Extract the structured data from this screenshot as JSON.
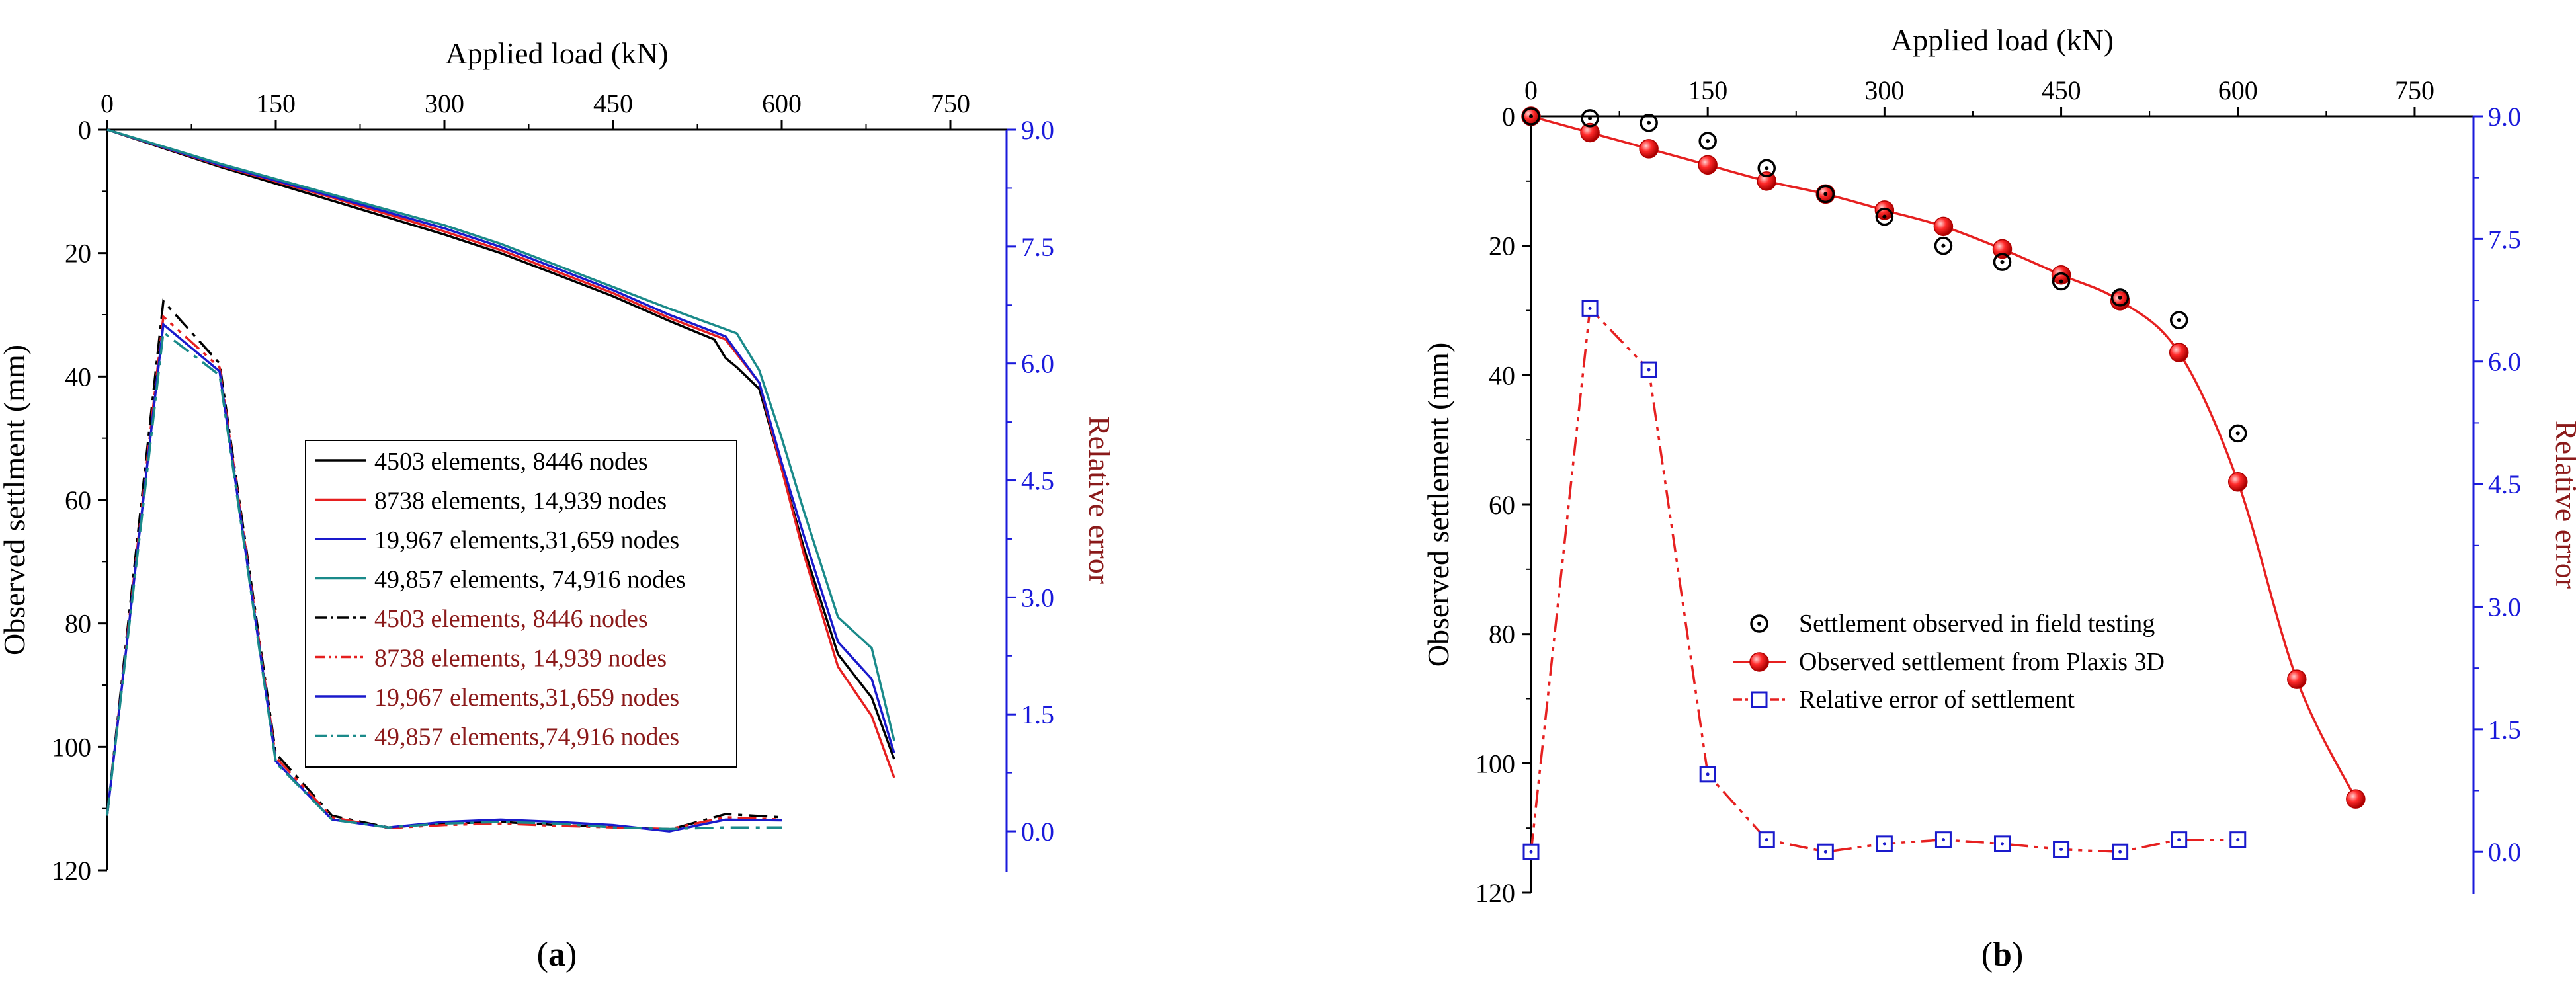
{
  "chart_data": [
    {
      "type": "line",
      "panel_label": "a",
      "xlabel": "Applied load (kN)",
      "ylabel": "Observed settlment (mm)",
      "y2label": "Relative error",
      "xlim": [
        0,
        800
      ],
      "xticks": [
        0,
        150,
        300,
        450,
        600,
        750
      ],
      "xtick_labels": [
        "0",
        "150",
        "300",
        "450",
        "600",
        "750"
      ],
      "ylim": [
        0,
        120
      ],
      "yticks": [
        0,
        20,
        40,
        60,
        80,
        100,
        120
      ],
      "ytick_labels": [
        "0",
        "20",
        "40",
        "60",
        "80",
        "100",
        "120"
      ],
      "y_inverted": true,
      "y2lim": [
        -0.5,
        9.0
      ],
      "y2ticks": [
        0,
        1.5,
        3,
        4.5,
        6,
        7.5,
        9
      ],
      "y2tick_labels": [
        "0.0",
        "1.5",
        "3.0",
        "4.5",
        "6.0",
        "7.5",
        "9.0"
      ],
      "legend_position": "center-right",
      "colors": {
        "y2_axis": "#1a1adb",
        "y2_label": "#8b1a1a",
        "legend_red_text": "#8b1a1a"
      },
      "series": [
        {
          "name": "4503 elements, 8446 nodes",
          "axis": "y",
          "color": "#000000",
          "dash": "solid",
          "x": [
            0,
            100,
            200,
            300,
            350,
            400,
            450,
            500,
            540,
            550,
            560,
            580,
            600,
            620,
            650,
            680,
            700
          ],
          "y": [
            0,
            6,
            11.5,
            17,
            20,
            23.5,
            27,
            31,
            34,
            37,
            38.5,
            42,
            55,
            68,
            85,
            92,
            102
          ]
        },
        {
          "name": "8738 elements, 14,939 nodes",
          "axis": "y",
          "color": "#e62020",
          "dash": "solid",
          "x": [
            0,
            100,
            200,
            300,
            350,
            400,
            450,
            500,
            550,
            580,
            600,
            620,
            650,
            680,
            700
          ],
          "y": [
            0,
            5.8,
            11,
            16.5,
            19.5,
            23,
            26.5,
            30.5,
            34,
            41,
            55,
            69,
            87,
            95,
            105
          ]
        },
        {
          "name": "19,967 elements,31,659 nodes",
          "axis": "y",
          "color": "#1a1acc",
          "dash": "solid",
          "x": [
            0,
            100,
            200,
            300,
            350,
            400,
            450,
            500,
            550,
            580,
            600,
            620,
            650,
            680,
            700
          ],
          "y": [
            0,
            5.7,
            10.8,
            16,
            19,
            22.5,
            26,
            30,
            33.5,
            41,
            54,
            66,
            83,
            89,
            101
          ]
        },
        {
          "name": "49,857 elements, 74,916 nodes",
          "axis": "y",
          "color": "#1a8a8a",
          "dash": "solid",
          "x": [
            0,
            100,
            200,
            300,
            350,
            400,
            450,
            500,
            560,
            580,
            600,
            620,
            650,
            680,
            700
          ],
          "y": [
            0,
            5.5,
            10.5,
            15.5,
            18.5,
            22,
            25.5,
            29,
            33,
            39,
            50,
            62,
            79,
            84,
            99
          ]
        },
        {
          "name": "4503 elements, 8446 nodes",
          "axis": "y2",
          "color": "#000000",
          "dash": "dashdot",
          "x": [
            0,
            50,
            100,
            150,
            200,
            250,
            300,
            350,
            400,
            450,
            500,
            550,
            600
          ],
          "y": [
            0.2,
            6.8,
            6.0,
            1.0,
            0.2,
            0.05,
            0.1,
            0.12,
            0.08,
            0.06,
            0.02,
            0.22,
            0.18
          ]
        },
        {
          "name": "8738 elements, 14,939 nodes",
          "axis": "y2",
          "color": "#e62020",
          "dash": "dashdotdot",
          "x": [
            0,
            50,
            100,
            150,
            200,
            250,
            300,
            350,
            400,
            450,
            500,
            550,
            600
          ],
          "y": [
            0.2,
            6.6,
            5.95,
            0.95,
            0.18,
            0.04,
            0.08,
            0.1,
            0.07,
            0.05,
            0.03,
            0.18,
            0.15
          ]
        },
        {
          "name": "19,967 elements,31,659 nodes",
          "axis": "y2",
          "color": "#1a1acc",
          "dash": "solid",
          "x": [
            0,
            50,
            100,
            150,
            200,
            250,
            300,
            350,
            400,
            450,
            500,
            550,
            600
          ],
          "y": [
            0.2,
            6.5,
            5.9,
            0.9,
            0.15,
            0.05,
            0.12,
            0.15,
            0.12,
            0.08,
            0.0,
            0.15,
            0.14
          ]
        },
        {
          "name": "49,857 elements,74,916 nodes",
          "axis": "y2",
          "color": "#1a8a8a",
          "dash": "dashdot",
          "x": [
            0,
            50,
            100,
            150,
            200,
            250,
            300,
            350,
            400,
            450,
            500,
            550,
            600
          ],
          "y": [
            0.2,
            6.4,
            5.85,
            0.88,
            0.15,
            0.05,
            0.1,
            0.12,
            0.1,
            0.05,
            0.03,
            0.05,
            0.05
          ]
        }
      ]
    },
    {
      "type": "scatter-line",
      "panel_label": "b",
      "xlabel": "Applied load (kN)",
      "ylabel": "Observed settlement (mm)",
      "y2label": "Relative error",
      "xlim": [
        0,
        800
      ],
      "xticks": [
        0,
        150,
        300,
        450,
        600,
        750
      ],
      "xtick_labels": [
        "0",
        "150",
        "300",
        "450",
        "600",
        "750"
      ],
      "ylim": [
        0,
        120
      ],
      "yticks": [
        0,
        20,
        40,
        60,
        80,
        100,
        120
      ],
      "ytick_labels": [
        "0",
        "20",
        "40",
        "60",
        "80",
        "100",
        "120"
      ],
      "y_inverted": true,
      "y2lim": [
        -0.5,
        9.0
      ],
      "y2ticks": [
        0,
        1.5,
        3,
        4.5,
        6,
        7.5,
        9
      ],
      "y2tick_labels": [
        "0.0",
        "1.5",
        "3.0",
        "4.5",
        "6.0",
        "7.5",
        "9.0"
      ],
      "legend_position": "center",
      "colors": {
        "y2_axis": "#1a1adb",
        "y2_label": "#8b1a1a",
        "plaxis": "#e62020",
        "field": "#000000",
        "error_line": "#e62020",
        "error_marker": "#1a1acc"
      },
      "series": [
        {
          "name": "Settlement observed in field testing",
          "axis": "y",
          "marker": "dotted-circle",
          "line": "none",
          "x": [
            0,
            50,
            100,
            150,
            200,
            250,
            300,
            350,
            400,
            450,
            500,
            550,
            600
          ],
          "y": [
            0,
            0.3,
            1,
            3.8,
            8,
            12,
            15.5,
            20,
            22.5,
            25.5,
            28,
            31.5,
            49
          ]
        },
        {
          "name": "Observed settlement from Plaxis 3D",
          "axis": "y",
          "marker": "red-sphere",
          "line": "solid",
          "x": [
            0,
            50,
            100,
            150,
            200,
            250,
            300,
            350,
            400,
            450,
            500,
            550,
            600,
            650,
            700
          ],
          "y": [
            0,
            2.5,
            5,
            7.5,
            10,
            12,
            14.5,
            17,
            20.5,
            24.5,
            28.5,
            36.5,
            56.5,
            87,
            105.5
          ]
        },
        {
          "name": "Relative error of settlement",
          "axis": "y2",
          "marker": "dotted-square",
          "line": "dashdotdot",
          "x": [
            0,
            50,
            100,
            150,
            200,
            250,
            300,
            350,
            400,
            450,
            500,
            550,
            600
          ],
          "y": [
            0.0,
            6.65,
            5.9,
            0.95,
            0.15,
            0.0,
            0.1,
            0.15,
            0.1,
            0.03,
            0.0,
            0.15,
            0.15
          ]
        }
      ]
    }
  ]
}
